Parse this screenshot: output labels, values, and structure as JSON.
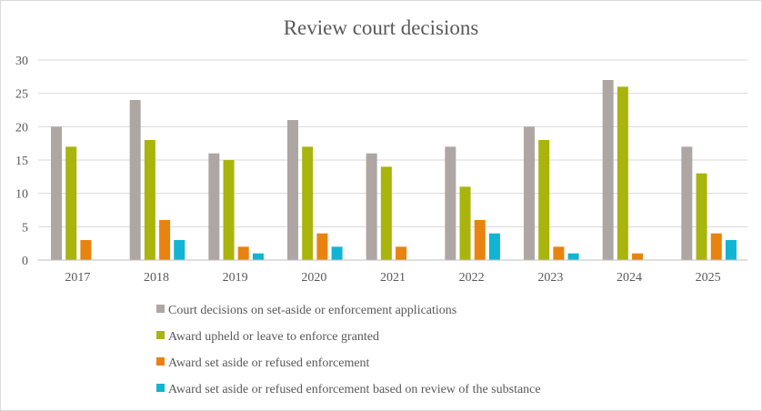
{
  "chart_data": {
    "type": "bar",
    "title": "Review court decisions",
    "xlabel": "",
    "ylabel": "",
    "ylim": [
      0,
      30
    ],
    "yticks": [
      0,
      5,
      10,
      15,
      20,
      25,
      30
    ],
    "grid": true,
    "legend_position": "bottom",
    "categories": [
      "2017",
      "2018",
      "2019",
      "2020",
      "2021",
      "2022",
      "2023",
      "2024",
      "2025"
    ],
    "series": [
      {
        "name": "Court decisions on set-aside or enforcement applications",
        "color": "#ada6a2",
        "values": [
          20,
          24,
          16,
          21,
          16,
          17,
          20,
          27,
          17
        ]
      },
      {
        "name": "Award upheld or leave to enforce granted",
        "color": "#a9b40c",
        "values": [
          17,
          18,
          15,
          17,
          14,
          11,
          18,
          26,
          13
        ]
      },
      {
        "name": "Award set aside or refused enforcement",
        "color": "#e8830f",
        "values": [
          3,
          6,
          2,
          4,
          2,
          6,
          2,
          1,
          4
        ]
      },
      {
        "name": "Award set aside or refused enforcement based on review of the substance",
        "color": "#12b4d4",
        "values": [
          0,
          3,
          1,
          2,
          0,
          4,
          1,
          0,
          3
        ]
      }
    ]
  }
}
